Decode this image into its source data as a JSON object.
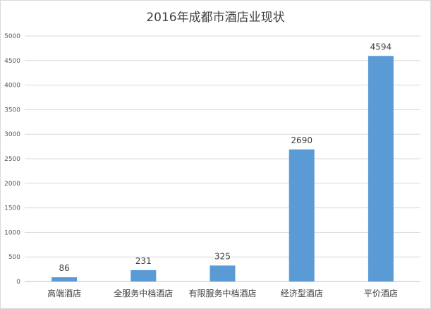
{
  "chart_data": {
    "type": "bar",
    "title": "2016年成都市酒店业现状",
    "categories": [
      "高端酒店",
      "全服务中档酒店",
      "有限服务中档酒店",
      "经济型酒店",
      "平价酒店"
    ],
    "values": [
      86,
      231,
      325,
      2690,
      4594
    ],
    "xlabel": "",
    "ylabel": "",
    "ylim": [
      0,
      5000
    ],
    "yticks": [
      0,
      500,
      1000,
      1500,
      2000,
      2500,
      3000,
      3500,
      4000,
      4500,
      5000
    ],
    "grid": true,
    "bar_color": "#5b9bd5",
    "grid_color": "#d9d9d9",
    "data_labels": true
  }
}
